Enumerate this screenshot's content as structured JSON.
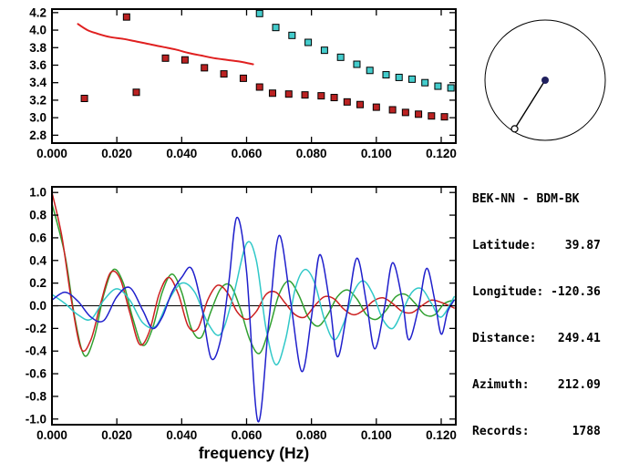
{
  "station_info": {
    "lines": [
      "BEK-NN - BDM-BK",
      "Latitude:    39.87",
      "Longitude: -120.36",
      "Distance:   249.41",
      "Azimuth:    212.09",
      "Records:      1788"
    ]
  },
  "azimuth_plot": {
    "azimuth_deg": 212.09,
    "circle_color": "#000000",
    "line_color": "#000000",
    "center_dot_color": "#20205e",
    "end_marker_fill": "#ffffff"
  },
  "chart_data": [
    {
      "id": "dispersion",
      "type": "scatter",
      "title": "",
      "xlabel": "",
      "ylabel": "",
      "xlim": [
        0,
        0.1245
      ],
      "ylim": [
        2.71,
        4.24
      ],
      "grid": false,
      "xticks": {
        "values": [
          0,
          0.02,
          0.04,
          0.06,
          0.08,
          0.1,
          0.12
        ],
        "labels": [
          "0.000",
          "0.020",
          "0.040",
          "0.060",
          "0.080",
          "0.100",
          "0.120"
        ]
      },
      "yticks": {
        "values": [
          2.8,
          3.0,
          3.2,
          3.4,
          3.6,
          3.8,
          4.0,
          4.2
        ],
        "labels": [
          "2.8",
          "3.0",
          "3.2",
          "3.4",
          "3.6",
          "3.8",
          "4.0",
          "4.2"
        ]
      },
      "series": [
        {
          "name": "measured-group-velocity",
          "type": "scatter",
          "marker": "square",
          "color": "#bb2222",
          "edge_color": "#000000",
          "points": [
            [
              0.01,
              3.22
            ],
            [
              0.023,
              4.15
            ],
            [
              0.026,
              3.29
            ],
            [
              0.035,
              3.68
            ],
            [
              0.041,
              3.66
            ],
            [
              0.047,
              3.57
            ],
            [
              0.053,
              3.5
            ],
            [
              0.059,
              3.45
            ],
            [
              0.064,
              3.35
            ],
            [
              0.068,
              3.28
            ],
            [
              0.073,
              3.27
            ],
            [
              0.078,
              3.26
            ],
            [
              0.083,
              3.25
            ],
            [
              0.087,
              3.23
            ],
            [
              0.091,
              3.18
            ],
            [
              0.095,
              3.15
            ],
            [
              0.1,
              3.12
            ],
            [
              0.105,
              3.09
            ],
            [
              0.109,
              3.06
            ],
            [
              0.113,
              3.04
            ],
            [
              0.117,
              3.02
            ],
            [
              0.121,
              3.01
            ]
          ]
        },
        {
          "name": "predicted-group-velocity",
          "type": "scatter",
          "marker": "square",
          "color": "#44cccc",
          "edge_color": "#000000",
          "points": [
            [
              0.064,
              4.19
            ],
            [
              0.069,
              4.03
            ],
            [
              0.074,
              3.94
            ],
            [
              0.079,
              3.86
            ],
            [
              0.084,
              3.77
            ],
            [
              0.089,
              3.69
            ],
            [
              0.094,
              3.61
            ],
            [
              0.098,
              3.54
            ],
            [
              0.103,
              3.49
            ],
            [
              0.107,
              3.46
            ],
            [
              0.111,
              3.44
            ],
            [
              0.115,
              3.4
            ],
            [
              0.119,
              3.36
            ],
            [
              0.123,
              3.34
            ]
          ]
        },
        {
          "name": "reference-dispersion-curve",
          "type": "line",
          "color": "#e02020",
          "width": 2,
          "points": [
            [
              0.008,
              4.07
            ],
            [
              0.011,
              4.0
            ],
            [
              0.014,
              3.96
            ],
            [
              0.018,
              3.92
            ],
            [
              0.022,
              3.9
            ],
            [
              0.026,
              3.87
            ],
            [
              0.03,
              3.84
            ],
            [
              0.034,
              3.81
            ],
            [
              0.038,
              3.78
            ],
            [
              0.042,
              3.74
            ],
            [
              0.046,
              3.71
            ],
            [
              0.05,
              3.68
            ],
            [
              0.054,
              3.66
            ],
            [
              0.058,
              3.64
            ],
            [
              0.062,
              3.61
            ]
          ]
        }
      ]
    },
    {
      "id": "waveform",
      "type": "line",
      "title": "",
      "xlabel": "frequency (Hz)",
      "ylabel": "",
      "xlim": [
        0,
        0.1245
      ],
      "ylim": [
        -1.05,
        1.05
      ],
      "grid": false,
      "zero_line": true,
      "xticks": {
        "values": [
          0,
          0.02,
          0.04,
          0.06,
          0.08,
          0.1,
          0.12
        ],
        "labels": [
          "0.000",
          "0.020",
          "0.040",
          "0.060",
          "0.080",
          "0.100",
          "0.120"
        ]
      },
      "yticks": {
        "values": [
          -1.0,
          -0.8,
          -0.6,
          -0.4,
          -0.2,
          0.0,
          0.2,
          0.4,
          0.6,
          0.8,
          1.0
        ],
        "labels": [
          "-1.0",
          "-0.8",
          "-0.6",
          "-0.4",
          "-0.2",
          "0.0",
          "0.2",
          "0.4",
          "0.6",
          "0.8",
          "1.0"
        ]
      },
      "series": [
        {
          "name": "green-trace",
          "type": "line",
          "color": "#30a030",
          "width": 1.5,
          "points": [
            [
              0,
              0.9
            ],
            [
              0.004,
              0.45
            ],
            [
              0.007,
              -0.1
            ],
            [
              0.01,
              -0.44
            ],
            [
              0.013,
              -0.28
            ],
            [
              0.016,
              0.1
            ],
            [
              0.019,
              0.32
            ],
            [
              0.022,
              0.2
            ],
            [
              0.025,
              -0.12
            ],
            [
              0.028,
              -0.35
            ],
            [
              0.031,
              -0.2
            ],
            [
              0.034,
              0.12
            ],
            [
              0.037,
              0.28
            ],
            [
              0.04,
              0.12
            ],
            [
              0.043,
              -0.2
            ],
            [
              0.046,
              -0.28
            ],
            [
              0.049,
              -0.05
            ],
            [
              0.052,
              0.15
            ],
            [
              0.055,
              0.18
            ],
            [
              0.058,
              -0.02
            ],
            [
              0.061,
              -0.3
            ],
            [
              0.064,
              -0.42
            ],
            [
              0.067,
              -0.2
            ],
            [
              0.07,
              0.1
            ],
            [
              0.073,
              0.22
            ],
            [
              0.076,
              0.1
            ],
            [
              0.079,
              -0.1
            ],
            [
              0.082,
              -0.18
            ],
            [
              0.085,
              -0.08
            ],
            [
              0.088,
              0.08
            ],
            [
              0.091,
              0.14
            ],
            [
              0.094,
              0.06
            ],
            [
              0.097,
              -0.08
            ],
            [
              0.1,
              -0.12
            ],
            [
              0.103,
              -0.04
            ],
            [
              0.106,
              0.08
            ],
            [
              0.109,
              0.1
            ],
            [
              0.112,
              0.02
            ],
            [
              0.115,
              -0.08
            ],
            [
              0.118,
              -0.08
            ],
            [
              0.121,
              0.02
            ],
            [
              0.124,
              0.05
            ]
          ]
        },
        {
          "name": "red-trace",
          "type": "line",
          "color": "#cc2020",
          "width": 1.5,
          "points": [
            [
              0,
              1.0
            ],
            [
              0.003,
              0.62
            ],
            [
              0.006,
              0.05
            ],
            [
              0.009,
              -0.38
            ],
            [
              0.012,
              -0.3
            ],
            [
              0.015,
              0.02
            ],
            [
              0.018,
              0.29
            ],
            [
              0.021,
              0.24
            ],
            [
              0.024,
              -0.06
            ],
            [
              0.027,
              -0.34
            ],
            [
              0.03,
              -0.23
            ],
            [
              0.033,
              0.1
            ],
            [
              0.036,
              0.25
            ],
            [
              0.039,
              0.1
            ],
            [
              0.042,
              -0.18
            ],
            [
              0.045,
              -0.2
            ],
            [
              0.048,
              0.05
            ],
            [
              0.051,
              0.18
            ],
            [
              0.054,
              0.12
            ],
            [
              0.057,
              -0.05
            ],
            [
              0.06,
              -0.12
            ],
            [
              0.063,
              -0.05
            ],
            [
              0.066,
              0.1
            ],
            [
              0.069,
              0.12
            ],
            [
              0.072,
              0.02
            ],
            [
              0.075,
              -0.08
            ],
            [
              0.078,
              -0.1
            ],
            [
              0.081,
              0.0
            ],
            [
              0.084,
              0.08
            ],
            [
              0.087,
              0.06
            ],
            [
              0.09,
              -0.03
            ],
            [
              0.093,
              -0.08
            ],
            [
              0.096,
              -0.04
            ],
            [
              0.099,
              0.04
            ],
            [
              0.102,
              0.07
            ],
            [
              0.105,
              0.02
            ],
            [
              0.108,
              -0.05
            ],
            [
              0.111,
              -0.06
            ],
            [
              0.114,
              0.0
            ],
            [
              0.117,
              0.05
            ],
            [
              0.12,
              0.03
            ],
            [
              0.124,
              -0.02
            ]
          ]
        },
        {
          "name": "cyan-trace",
          "type": "line",
          "color": "#30c8c8",
          "width": 1.5,
          "points": [
            [
              0,
              0.1
            ],
            [
              0.004,
              0.02
            ],
            [
              0.008,
              -0.08
            ],
            [
              0.012,
              -0.12
            ],
            [
              0.016,
              0.05
            ],
            [
              0.02,
              0.15
            ],
            [
              0.024,
              0.05
            ],
            [
              0.028,
              -0.15
            ],
            [
              0.032,
              -0.18
            ],
            [
              0.036,
              0.05
            ],
            [
              0.04,
              0.2
            ],
            [
              0.044,
              0.12
            ],
            [
              0.048,
              -0.15
            ],
            [
              0.052,
              -0.25
            ],
            [
              0.056,
              0.1
            ],
            [
              0.06,
              0.55
            ],
            [
              0.063,
              0.4
            ],
            [
              0.066,
              -0.2
            ],
            [
              0.069,
              -0.52
            ],
            [
              0.072,
              -0.3
            ],
            [
              0.075,
              0.15
            ],
            [
              0.078,
              0.32
            ],
            [
              0.081,
              0.2
            ],
            [
              0.084,
              -0.12
            ],
            [
              0.087,
              -0.3
            ],
            [
              0.09,
              -0.15
            ],
            [
              0.093,
              0.12
            ],
            [
              0.096,
              0.22
            ],
            [
              0.099,
              0.1
            ],
            [
              0.102,
              -0.12
            ],
            [
              0.105,
              -0.2
            ],
            [
              0.108,
              -0.05
            ],
            [
              0.111,
              0.12
            ],
            [
              0.114,
              0.15
            ],
            [
              0.117,
              0.02
            ],
            [
              0.12,
              -0.1
            ],
            [
              0.124,
              0.08
            ]
          ]
        },
        {
          "name": "blue-trace",
          "type": "line",
          "color": "#2020cc",
          "width": 1.5,
          "points": [
            [
              0,
              0.05
            ],
            [
              0.004,
              0.12
            ],
            [
              0.008,
              0.04
            ],
            [
              0.012,
              -0.1
            ],
            [
              0.016,
              -0.13
            ],
            [
              0.02,
              0.08
            ],
            [
              0.024,
              0.16
            ],
            [
              0.028,
              -0.04
            ],
            [
              0.031,
              -0.2
            ],
            [
              0.034,
              -0.1
            ],
            [
              0.037,
              0.12
            ],
            [
              0.04,
              0.25
            ],
            [
              0.043,
              0.33
            ],
            [
              0.046,
              0.02
            ],
            [
              0.049,
              -0.46
            ],
            [
              0.052,
              -0.3
            ],
            [
              0.0545,
              0.2
            ],
            [
              0.057,
              0.78
            ],
            [
              0.06,
              0.3
            ],
            [
              0.0635,
              -1.02
            ],
            [
              0.067,
              -0.1
            ],
            [
              0.07,
              0.62
            ],
            [
              0.0735,
              0.05
            ],
            [
              0.077,
              -0.58
            ],
            [
              0.08,
              -0.1
            ],
            [
              0.0825,
              0.45
            ],
            [
              0.0855,
              0.05
            ],
            [
              0.088,
              -0.45
            ],
            [
              0.091,
              -0.05
            ],
            [
              0.094,
              0.42
            ],
            [
              0.097,
              0.02
            ],
            [
              0.0995,
              -0.38
            ],
            [
              0.1025,
              -0.02
            ],
            [
              0.105,
              0.38
            ],
            [
              0.108,
              0.05
            ],
            [
              0.11,
              -0.3
            ],
            [
              0.113,
              -0.02
            ],
            [
              0.1155,
              0.33
            ],
            [
              0.118,
              0.05
            ],
            [
              0.12,
              -0.25
            ],
            [
              0.122,
              -0.05
            ],
            [
              0.124,
              0.05
            ]
          ]
        }
      ]
    }
  ]
}
